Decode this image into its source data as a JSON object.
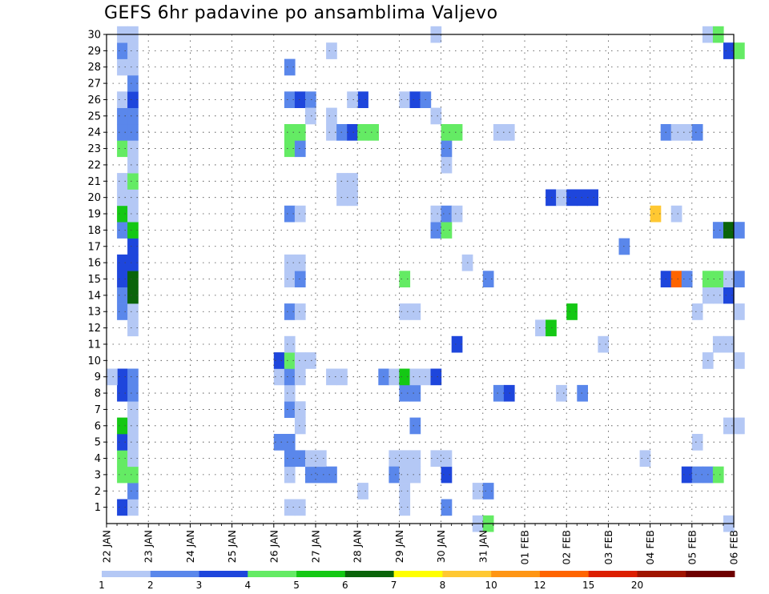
{
  "chart_data": {
    "type": "heatmap",
    "title": "GEFS 6hr padavine po ansamblima Valjevo",
    "xlabel": "",
    "ylabel": "",
    "x_ticks": [
      "22 JAN",
      "23 JAN",
      "24 JAN",
      "25 JAN",
      "26 JAN",
      "27 JAN",
      "28 JAN",
      "29 JAN",
      "30 JAN",
      "31 JAN",
      "01 FEB",
      "02 FEB",
      "03 FEB",
      "04 FEB",
      "05 FEB",
      "06 FEB"
    ],
    "y_ticks": [
      1,
      2,
      3,
      4,
      5,
      6,
      7,
      8,
      9,
      10,
      11,
      12,
      13,
      14,
      15,
      16,
      17,
      18,
      19,
      20,
      21,
      22,
      23,
      24,
      25,
      26,
      27,
      28,
      29,
      30
    ],
    "xlim": [
      "22 JAN",
      "06 FEB"
    ],
    "ylim": [
      0,
      30
    ],
    "grid": true,
    "legend": {
      "placement": "bottom",
      "labels": [
        "1",
        "2",
        "3",
        "4",
        "5",
        "6",
        "7",
        "8",
        "10",
        "12",
        "15",
        "20"
      ],
      "colors": [
        "#b4c8f5",
        "#5a87eb",
        "#1e46dc",
        "#64eb64",
        "#14c814",
        "#0a640a",
        "#ffff00",
        "#ffc832",
        "#ff9614",
        "#ff6400",
        "#dc1e00",
        "#a01400",
        "#6e0000"
      ]
    },
    "series_desc": "Each cell = one ensemble member (y) at a 6-hour step (x = day offset from 22 JAN 00z); value = precipitation level class (1..13 index into legend colors).",
    "cells": [
      [
        0.25,
        1,
        3
      ],
      [
        0.25,
        3,
        4
      ],
      [
        0.25,
        4,
        4
      ],
      [
        0.25,
        5,
        3
      ],
      [
        0.25,
        6,
        5
      ],
      [
        0.25,
        8,
        3
      ],
      [
        0.25,
        9,
        3
      ],
      [
        0.25,
        13,
        2
      ],
      [
        0.25,
        14,
        2
      ],
      [
        0.25,
        15,
        3
      ],
      [
        0.25,
        16,
        3
      ],
      [
        0.25,
        18,
        2
      ],
      [
        0.25,
        19,
        5
      ],
      [
        0.25,
        20,
        1
      ],
      [
        0.25,
        21,
        1
      ],
      [
        0.25,
        23,
        4
      ],
      [
        0.25,
        24,
        2
      ],
      [
        0.25,
        25,
        2
      ],
      [
        0.25,
        26,
        1
      ],
      [
        0.25,
        28,
        1
      ],
      [
        0.25,
        29,
        2
      ],
      [
        0.25,
        30,
        1
      ],
      [
        0,
        9,
        1
      ],
      [
        0.5,
        1,
        1
      ],
      [
        0.5,
        2,
        2
      ],
      [
        0.5,
        3,
        4
      ],
      [
        0.5,
        4,
        1
      ],
      [
        0.5,
        5,
        1
      ],
      [
        0.5,
        6,
        1
      ],
      [
        0.5,
        7,
        1
      ],
      [
        0.5,
        8,
        2
      ],
      [
        0.5,
        9,
        2
      ],
      [
        0.5,
        12,
        1
      ],
      [
        0.5,
        13,
        1
      ],
      [
        0.5,
        14,
        6
      ],
      [
        0.5,
        15,
        6
      ],
      [
        0.5,
        16,
        3
      ],
      [
        0.5,
        17,
        3
      ],
      [
        0.5,
        18,
        5
      ],
      [
        0.5,
        19,
        1
      ],
      [
        0.5,
        20,
        1
      ],
      [
        0.5,
        21,
        4
      ],
      [
        0.5,
        22,
        1
      ],
      [
        0.5,
        23,
        1
      ],
      [
        0.5,
        24,
        2
      ],
      [
        0.5,
        25,
        2
      ],
      [
        0.5,
        26,
        3
      ],
      [
        0.5,
        27,
        2
      ],
      [
        0.5,
        28,
        1
      ],
      [
        0.5,
        29,
        1
      ],
      [
        0.5,
        30,
        1
      ],
      [
        4.0,
        5,
        2
      ],
      [
        4.0,
        9,
        1
      ],
      [
        4.0,
        10,
        3
      ],
      [
        4.25,
        1,
        0
      ],
      [
        4.25,
        3,
        0
      ],
      [
        4.25,
        4,
        2
      ],
      [
        4.25,
        5,
        2
      ],
      [
        4.25,
        7,
        2
      ],
      [
        4.25,
        8,
        1
      ],
      [
        4.25,
        9,
        2
      ],
      [
        4.25,
        10,
        4
      ],
      [
        4.25,
        11,
        1
      ],
      [
        4.25,
        13,
        2
      ],
      [
        4.25,
        15,
        1
      ],
      [
        4.25,
        16,
        1
      ],
      [
        4.25,
        19,
        2
      ],
      [
        4.25,
        23,
        4
      ],
      [
        4.25,
        24,
        4
      ],
      [
        4.25,
        26,
        2
      ],
      [
        4.25,
        28,
        2
      ],
      [
        4.5,
        1,
        1
      ],
      [
        4.5,
        4,
        2
      ],
      [
        4.5,
        6,
        1
      ],
      [
        4.5,
        7,
        1
      ],
      [
        4.5,
        9,
        1
      ],
      [
        4.5,
        10,
        1
      ],
      [
        4.5,
        13,
        1
      ],
      [
        4.5,
        15,
        2
      ],
      [
        4.5,
        16,
        1
      ],
      [
        4.5,
        19,
        1
      ],
      [
        4.5,
        23,
        2
      ],
      [
        4.5,
        24,
        4
      ],
      [
        4.5,
        26,
        3
      ],
      [
        4.75,
        3,
        2
      ],
      [
        4.75,
        4,
        1
      ],
      [
        4.75,
        10,
        1
      ],
      [
        4.75,
        26,
        2
      ],
      [
        4.75,
        25,
        1
      ],
      [
        5.0,
        3,
        2
      ],
      [
        5.0,
        4,
        1
      ],
      [
        5.25,
        3,
        2
      ],
      [
        5.25,
        9,
        1
      ],
      [
        5.25,
        24,
        1
      ],
      [
        5.25,
        25,
        1
      ],
      [
        5.25,
        29,
        1
      ],
      [
        5.5,
        9,
        1
      ],
      [
        5.5,
        20,
        1
      ],
      [
        5.5,
        21,
        1
      ],
      [
        5.5,
        24,
        2
      ],
      [
        5.75,
        24,
        3
      ],
      [
        5.75,
        20,
        1
      ],
      [
        5.75,
        21,
        1
      ],
      [
        6.0,
        2,
        1
      ],
      [
        6.0,
        24,
        4
      ],
      [
        6.0,
        26,
        3
      ],
      [
        6.25,
        24,
        4
      ],
      [
        5.75,
        26,
        1
      ],
      [
        6.5,
        9,
        2
      ],
      [
        6.75,
        9,
        1
      ],
      [
        6.75,
        4,
        1
      ],
      [
        6.75,
        3,
        2
      ],
      [
        7.0,
        1,
        1
      ],
      [
        7.0,
        2,
        1
      ],
      [
        7.0,
        3,
        1
      ],
      [
        7.0,
        4,
        1
      ],
      [
        7.0,
        8,
        2
      ],
      [
        7.0,
        9,
        5
      ],
      [
        7.0,
        13,
        1
      ],
      [
        7.0,
        15,
        4
      ],
      [
        7.0,
        26,
        1
      ],
      [
        7.25,
        3,
        1
      ],
      [
        7.25,
        4,
        1
      ],
      [
        7.25,
        6,
        2
      ],
      [
        7.25,
        8,
        2
      ],
      [
        7.25,
        9,
        1
      ],
      [
        7.25,
        13,
        1
      ],
      [
        7.25,
        26,
        3
      ],
      [
        7.5,
        9,
        1
      ],
      [
        7.5,
        26,
        2
      ],
      [
        7.75,
        9,
        3
      ],
      [
        7.75,
        4,
        1
      ],
      [
        7.75,
        18,
        2
      ],
      [
        7.75,
        19,
        1
      ],
      [
        7.75,
        25,
        1
      ],
      [
        7.75,
        30,
        1
      ],
      [
        8.0,
        1,
        2
      ],
      [
        8.0,
        3,
        3
      ],
      [
        8.0,
        4,
        1
      ],
      [
        8.0,
        18,
        4
      ],
      [
        8.0,
        19,
        2
      ],
      [
        8.0,
        22,
        1
      ],
      [
        8.0,
        23,
        2
      ],
      [
        8.0,
        24,
        4
      ],
      [
        8.25,
        11,
        3
      ],
      [
        8.25,
        19,
        1
      ],
      [
        8.25,
        24,
        4
      ],
      [
        8.5,
        16,
        1
      ],
      [
        8.75,
        2,
        1
      ],
      [
        8.75,
        0,
        1
      ],
      [
        9.0,
        0,
        4
      ],
      [
        9.0,
        2,
        2
      ],
      [
        9.0,
        15,
        2
      ],
      [
        9.25,
        8,
        2
      ],
      [
        9.25,
        24,
        1
      ],
      [
        9.5,
        8,
        3
      ],
      [
        9.5,
        24,
        1
      ],
      [
        10.25,
        12,
        1
      ],
      [
        10.5,
        20,
        3
      ],
      [
        10.75,
        8,
        1
      ],
      [
        10.75,
        20,
        1
      ],
      [
        10.5,
        12,
        5
      ],
      [
        11.0,
        13,
        5
      ],
      [
        11.0,
        20,
        3
      ],
      [
        11.25,
        8,
        2
      ],
      [
        11.25,
        20,
        3
      ],
      [
        11.5,
        20,
        3
      ],
      [
        11.75,
        11,
        1
      ],
      [
        12.25,
        17,
        2
      ],
      [
        12.75,
        4,
        1
      ],
      [
        13.0,
        19,
        8
      ],
      [
        13.25,
        15,
        3
      ],
      [
        13.25,
        24,
        2
      ],
      [
        13.5,
        15,
        10
      ],
      [
        13.5,
        19,
        1
      ],
      [
        13.5,
        24,
        1
      ],
      [
        13.75,
        3,
        3
      ],
      [
        13.75,
        15,
        2
      ],
      [
        13.75,
        24,
        1
      ],
      [
        14.0,
        3,
        2
      ],
      [
        14.0,
        5,
        1
      ],
      [
        14.0,
        13,
        1
      ],
      [
        14.0,
        24,
        2
      ],
      [
        14.25,
        3,
        2
      ],
      [
        14.25,
        10,
        1
      ],
      [
        14.25,
        14,
        1
      ],
      [
        14.25,
        15,
        4
      ],
      [
        14.25,
        30,
        1
      ],
      [
        14.5,
        3,
        4
      ],
      [
        14.5,
        11,
        1
      ],
      [
        14.5,
        14,
        1
      ],
      [
        14.5,
        15,
        4
      ],
      [
        14.5,
        18,
        2
      ],
      [
        14.5,
        30,
        4
      ],
      [
        14.75,
        0,
        1
      ],
      [
        14.75,
        6,
        1
      ],
      [
        14.75,
        11,
        1
      ],
      [
        14.75,
        14,
        3
      ],
      [
        14.75,
        15,
        1
      ],
      [
        14.75,
        18,
        6
      ],
      [
        14.75,
        29,
        3
      ],
      [
        15.0,
        10,
        1
      ],
      [
        15.0,
        13,
        1
      ],
      [
        15.0,
        15,
        2
      ],
      [
        15.0,
        18,
        2
      ],
      [
        15.0,
        29,
        4
      ],
      [
        15.0,
        6,
        1
      ]
    ]
  }
}
